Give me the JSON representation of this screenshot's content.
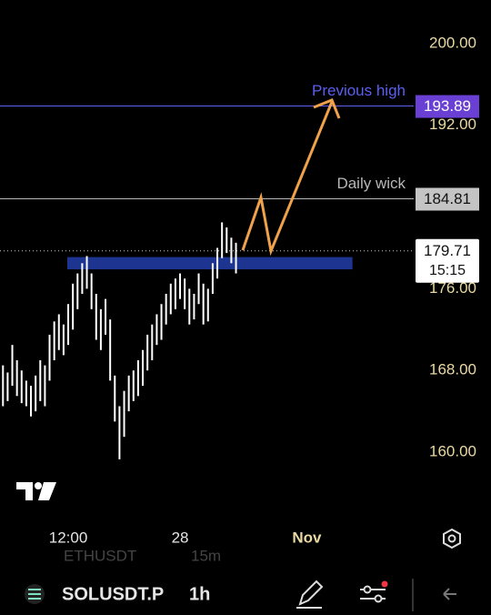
{
  "chart_data": {
    "type": "candlestick",
    "x": [
      -7,
      -6.5,
      -6,
      -5.5,
      -5,
      -4.5,
      -4,
      -3.5,
      -3,
      -2.5,
      -2,
      -1.5,
      -1,
      -0.5,
      0,
      0.5,
      1,
      1.5,
      2,
      2.5,
      3,
      3.5,
      4,
      4.5,
      5,
      5.5,
      6,
      6.5,
      7,
      7.5,
      8,
      8.5,
      9,
      9.5,
      10,
      10.5,
      11,
      11.5,
      12,
      12.5,
      13,
      13.5,
      14,
      14.5,
      15,
      15.5,
      16,
      16.5,
      17,
      17.5,
      18
    ],
    "high": [
      168.5,
      167.8,
      170.5,
      169.0,
      168.0,
      167.0,
      166.5,
      167.5,
      169.0,
      168.5,
      171.5,
      172.8,
      173.5,
      172.5,
      174.5,
      176.5,
      177.5,
      178.5,
      179.2,
      177.5,
      175.5,
      174.0,
      175.0,
      173.0,
      167.5,
      164.5,
      166.0,
      167.5,
      168.0,
      169.0,
      170.0,
      171.5,
      172.5,
      173.5,
      174.5,
      175.5,
      176.5,
      177.0,
      177.5,
      177.0,
      176.0,
      175.5,
      177.5,
      176.5,
      176.0,
      178.5,
      180.0,
      182.5,
      182.0,
      181.0,
      180.5
    ],
    "low": [
      164.5,
      165.0,
      166.5,
      165.5,
      164.8,
      164.5,
      163.5,
      164.0,
      165.0,
      164.5,
      167.0,
      169.0,
      170.0,
      169.5,
      170.5,
      172.0,
      174.0,
      175.5,
      176.0,
      174.0,
      171.0,
      170.0,
      171.5,
      167.0,
      163.0,
      159.3,
      161.5,
      164.0,
      165.0,
      165.5,
      166.5,
      168.0,
      169.0,
      170.5,
      171.0,
      172.5,
      173.5,
      174.0,
      175.0,
      174.0,
      172.5,
      173.0,
      174.5,
      172.5,
      172.8,
      175.5,
      177.0,
      179.0,
      179.5,
      178.5,
      177.5
    ],
    "color": "#ffffff",
    "xlim": [
      -7.32,
      37.07
    ],
    "xticks": [
      {
        "value": 0,
        "label": "12:00"
      },
      {
        "value": 12,
        "label": "28"
      },
      {
        "value": 25.6,
        "label": "Nov"
      }
    ],
    "ylim": [
      153.5,
      204.27
    ],
    "yticks": [
      {
        "value": 200,
        "label": "200.00"
      },
      {
        "value": 192,
        "label": "192.00"
      },
      {
        "value": 176,
        "label": "176.00"
      },
      {
        "value": 168,
        "label": "168.00"
      },
      {
        "value": 160,
        "label": "160.00"
      }
    ],
    "levels": [
      {
        "value": 193.89,
        "label": "Previous high",
        "color": "#5b5ff0"
      },
      {
        "value": 184.81,
        "label": "Daily wick",
        "color": "#b8b8b8"
      }
    ],
    "zone": {
      "xlim": [
        -0.1,
        30.5
      ],
      "ylim": [
        177.9,
        179.1
      ],
      "color": "#1d3591"
    },
    "last_price": 179.71,
    "countdown": "15:15",
    "symbol": "SOLUSDT.P",
    "interval": "1h",
    "overlay_symbol": "ETHUSDT",
    "overlay_interval": "15m"
  }
}
